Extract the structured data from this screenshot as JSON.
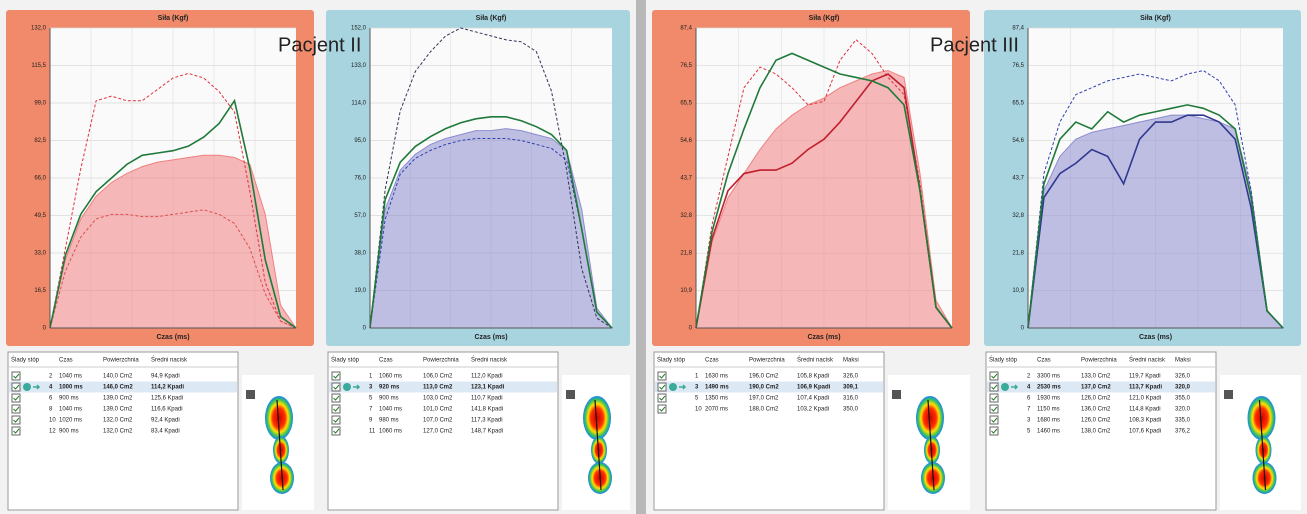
{
  "labels": [
    "Pacjent II",
    "Pacjent III"
  ],
  "chart_data": [
    {
      "type": "line",
      "title": "Siła (Kgf)",
      "x_label": "Czas (ms)",
      "frame": "#f08a6a",
      "grid": true,
      "ylim": [
        0,
        132
      ],
      "yticks": [
        0,
        {
          "value": 16.5,
          "label": "16,5"
        },
        {
          "value": 33,
          "label": "33,0"
        },
        {
          "value": 49.5,
          "label": "49,5"
        },
        {
          "value": 66,
          "label": "66,0"
        },
        {
          "value": 82.5,
          "label": "82,5"
        },
        {
          "value": 99,
          "label": "99,0"
        },
        {
          "value": 115.5,
          "label": "115,5"
        },
        {
          "value": 132,
          "label": "132,0"
        }
      ],
      "series": [
        {
          "style": "area",
          "color": "#f08080",
          "values": [
            0,
            30,
            48,
            58,
            64,
            68,
            71,
            73,
            74,
            75,
            76,
            76,
            75,
            72,
            50,
            10,
            0
          ]
        },
        {
          "style": "dashed",
          "color": "#e03040",
          "values": [
            0,
            35,
            70,
            100,
            102,
            100,
            100,
            105,
            110,
            112,
            110,
            104,
            95,
            60,
            20,
            3,
            0
          ]
        },
        {
          "style": "dashed",
          "color": "#e05050",
          "values": [
            0,
            25,
            40,
            48,
            50,
            50,
            49,
            49,
            50,
            51,
            52,
            50,
            46,
            35,
            15,
            3,
            0
          ]
        },
        {
          "style": "solid",
          "color": "#1f7a3a",
          "values": [
            0,
            32,
            50,
            60,
            66,
            72,
            76,
            77,
            78,
            80,
            84,
            90,
            100,
            70,
            30,
            5,
            0
          ]
        }
      ]
    },
    {
      "type": "line",
      "title": "Siła (Kgf)",
      "x_label": "Czas (ms)",
      "frame": "#a8d4e0",
      "grid": true,
      "ylim": [
        0,
        152
      ],
      "yticks": [
        0,
        {
          "value": 19,
          "label": "19,0"
        },
        {
          "value": 38,
          "label": "38,0"
        },
        {
          "value": 57,
          "label": "57,0"
        },
        {
          "value": 76,
          "label": "76,0"
        },
        {
          "value": 95,
          "label": "95,0"
        },
        {
          "value": 114,
          "label": "114,0"
        },
        {
          "value": 133,
          "label": "133,0"
        },
        {
          "value": 152,
          "label": "152,0"
        }
      ],
      "series": [
        {
          "style": "area",
          "color": "#8c8cd0",
          "values": [
            0,
            60,
            80,
            88,
            93,
            96,
            98,
            100,
            100,
            101,
            100,
            98,
            96,
            90,
            60,
            10,
            0
          ]
        },
        {
          "style": "dashed",
          "color": "#333355",
          "values": [
            0,
            70,
            110,
            130,
            140,
            148,
            152,
            150,
            148,
            146,
            145,
            140,
            120,
            80,
            30,
            5,
            0
          ]
        },
        {
          "style": "dashed",
          "color": "#3040b0",
          "values": [
            0,
            55,
            78,
            86,
            90,
            93,
            95,
            96,
            96,
            96,
            95,
            93,
            91,
            85,
            50,
            8,
            0
          ]
        },
        {
          "style": "solid",
          "color": "#1f7a3a",
          "values": [
            0,
            65,
            84,
            92,
            97,
            101,
            104,
            106,
            107,
            107,
            105,
            102,
            98,
            90,
            50,
            8,
            0
          ]
        }
      ]
    },
    {
      "type": "line",
      "title": "Siła (Kgf)",
      "x_label": "Czas (ms)",
      "frame": "#f08a6a",
      "grid": true,
      "ylim": [
        0,
        87.4
      ],
      "yticks": [
        0,
        {
          "value": 10.9,
          "label": "10,9"
        },
        {
          "value": 21.8,
          "label": "21,8"
        },
        {
          "value": 32.8,
          "label": "32,8"
        },
        {
          "value": 43.7,
          "label": "43,7"
        },
        {
          "value": 54.6,
          "label": "54,6"
        },
        {
          "value": 65.5,
          "label": "65,5"
        },
        {
          "value": 76.5,
          "label": "76,5"
        },
        {
          "value": 87.4,
          "label": "87,4"
        }
      ],
      "series": [
        {
          "style": "area",
          "color": "#f08080",
          "values": [
            0,
            25,
            38,
            45,
            52,
            58,
            62,
            65,
            67,
            70,
            72,
            74,
            75,
            73,
            45,
            8,
            0
          ]
        },
        {
          "style": "dashed",
          "color": "#e03040",
          "values": [
            0,
            30,
            50,
            70,
            76,
            74,
            70,
            65,
            66,
            78,
            84,
            80,
            73,
            68,
            42,
            6,
            0
          ]
        },
        {
          "style": "solid",
          "color": "#c02030",
          "values": [
            0,
            26,
            40,
            45,
            46,
            46,
            48,
            52,
            55,
            60,
            66,
            72,
            74,
            70,
            40,
            6,
            0
          ]
        },
        {
          "style": "solid",
          "color": "#1f7a3a",
          "values": [
            0,
            28,
            45,
            58,
            70,
            78,
            80,
            78,
            76,
            74,
            73,
            72,
            70,
            65,
            40,
            6,
            0
          ]
        }
      ]
    },
    {
      "type": "line",
      "title": "Siła (Kgf)",
      "x_label": "Czas (ms)",
      "frame": "#a8d4e0",
      "grid": true,
      "ylim": [
        0,
        87.4
      ],
      "yticks": [
        0,
        {
          "value": 10.9,
          "label": "10,9"
        },
        {
          "value": 21.8,
          "label": "21,8"
        },
        {
          "value": 32.8,
          "label": "32,8"
        },
        {
          "value": 43.7,
          "label": "43,7"
        },
        {
          "value": 54.6,
          "label": "54,6"
        },
        {
          "value": 65.5,
          "label": "65,5"
        },
        {
          "value": 76.5,
          "label": "76,5"
        },
        {
          "value": 87.4,
          "label": "87,4"
        }
      ],
      "series": [
        {
          "style": "area",
          "color": "#8c8cd0",
          "values": [
            0,
            40,
            50,
            55,
            57,
            58,
            59,
            60,
            61,
            62,
            62,
            61,
            60,
            58,
            40,
            5,
            0
          ]
        },
        {
          "style": "dashed",
          "color": "#3040b0",
          "values": [
            0,
            45,
            60,
            68,
            70,
            72,
            73,
            74,
            73,
            72,
            74,
            75,
            72,
            65,
            40,
            5,
            0
          ]
        },
        {
          "style": "solid",
          "color": "#303890",
          "values": [
            0,
            38,
            45,
            48,
            52,
            50,
            42,
            55,
            60,
            60,
            62,
            62,
            60,
            55,
            35,
            5,
            0
          ]
        },
        {
          "style": "solid",
          "color": "#1f7a3a",
          "values": [
            0,
            42,
            55,
            60,
            58,
            63,
            60,
            62,
            63,
            64,
            65,
            64,
            62,
            58,
            38,
            5,
            0
          ]
        }
      ]
    }
  ],
  "tables": [
    {
      "header": [
        "Ślady stóp",
        "Czas",
        "Powierzchnia",
        "Średni nacisk"
      ],
      "selected_row": 1,
      "rows": [
        [
          2,
          "1040 ms",
          "140,0 Cm2",
          "94,9 Kpadi"
        ],
        [
          4,
          "1000 ms",
          "146,0 Cm2",
          "114,2 Kpadi"
        ],
        [
          6,
          "900 ms",
          "139,0 Cm2",
          "125,6 Kpadi"
        ],
        [
          8,
          "1040 ms",
          "139,0 Cm2",
          "116,6 Kpadi"
        ],
        [
          10,
          "1020 ms",
          "132,0 Cm2",
          "92,4 Kpadi"
        ],
        [
          12,
          "900 ms",
          "132,0 Cm2",
          "83,4 Kpadi"
        ]
      ]
    },
    {
      "header": [
        "Ślady stóp",
        "Czas",
        "Powierzchnia",
        "Średni nacisk"
      ],
      "selected_row": 1,
      "rows": [
        [
          1,
          "1060 ms",
          "106,0 Cm2",
          "112,0 Kpadi"
        ],
        [
          3,
          "920 ms",
          "113,0 Cm2",
          "123,1 Kpadi"
        ],
        [
          5,
          "900 ms",
          "103,0 Cm2",
          "110,7 Kpadi"
        ],
        [
          7,
          "1040 ms",
          "101,0 Cm2",
          "141,8 Kpadi"
        ],
        [
          9,
          "980 ms",
          "107,0 Cm2",
          "117,3 Kpadi"
        ],
        [
          11,
          "1060 ms",
          "127,0 Cm2",
          "148,7 Kpadi"
        ]
      ]
    },
    {
      "header": [
        "Ślady stóp",
        "Czas",
        "Powierzchnia",
        "Średni nacisk",
        "Maksi"
      ],
      "selected_row": 1,
      "rows": [
        [
          1,
          "1630 ms",
          "196,0 Cm2",
          "105,8 Kpadi",
          "326,0"
        ],
        [
          3,
          "1490 ms",
          "190,0 Cm2",
          "106,9 Kpadi",
          "309,1"
        ],
        [
          5,
          "1350 ms",
          "197,0 Cm2",
          "107,4 Kpadi",
          "316,0"
        ],
        [
          10,
          "2070 ms",
          "188,0 Cm2",
          "103,2 Kpadi",
          "350,0"
        ]
      ]
    },
    {
      "header": [
        "Ślady stóp",
        "Czas",
        "Powierzchnia",
        "Średni nacisk",
        "Maksi"
      ],
      "selected_row": 1,
      "rows": [
        [
          2,
          "3300 ms",
          "133,0 Cm2",
          "119,7 Kpadi",
          "326,0"
        ],
        [
          4,
          "2530 ms",
          "137,0 Cm2",
          "113,7 Kpadi",
          "320,0"
        ],
        [
          6,
          "1930 ms",
          "126,0 Cm2",
          "121,0 Kpadi",
          "355,0"
        ],
        [
          7,
          "1150 ms",
          "136,0 Cm2",
          "114,8 Kpadi",
          "320,0"
        ],
        [
          3,
          "1680 ms",
          "126,0 Cm2",
          "108,3 Kpadi",
          "335,0"
        ],
        [
          5,
          "1460 ms",
          "138,0 Cm2",
          "107,6 Kpadi",
          "376,2"
        ]
      ]
    }
  ]
}
